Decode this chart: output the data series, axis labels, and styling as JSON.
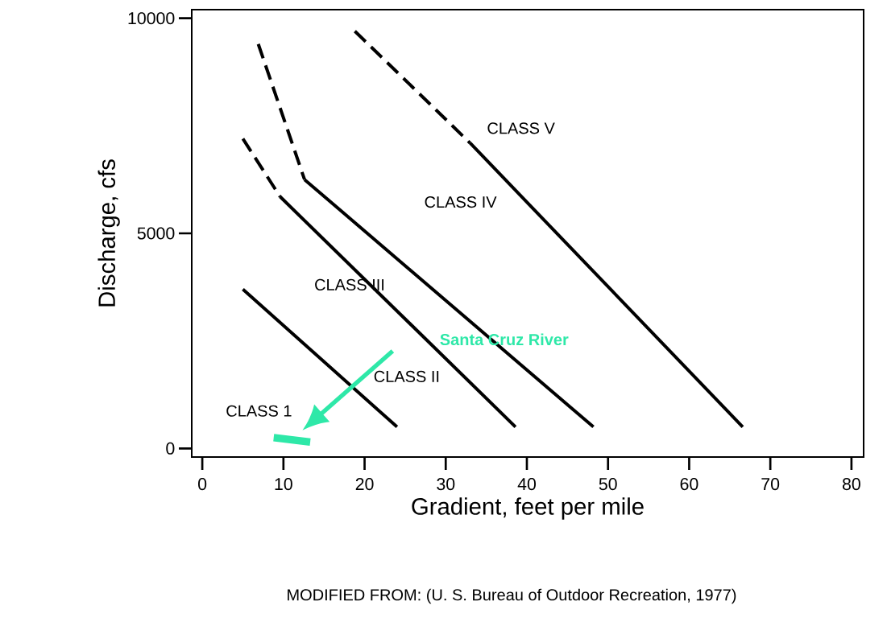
{
  "chart_data": {
    "type": "line",
    "xlabel": "Gradient, feet per mile",
    "ylabel": "Discharge, cfs",
    "xlim": [
      -1.3,
      81.5
    ],
    "ylim": [
      -200,
      10200
    ],
    "xticks": [
      0,
      10,
      20,
      30,
      40,
      50,
      60,
      70,
      80
    ],
    "yticks": [
      0,
      5000,
      10000
    ],
    "grid": false,
    "series": [
      {
        "x": [
          5,
          24
        ],
        "values": [
          3700,
          500
        ],
        "color": "#000000",
        "line_style": "solid"
      },
      {
        "x": [
          5,
          9.6
        ],
        "values": [
          7200,
          5850
        ],
        "color": "#000000",
        "line_style": "dashed"
      },
      {
        "x": [
          9.6,
          38.6
        ],
        "values": [
          5850,
          500
        ],
        "color": "#000000",
        "line_style": "solid"
      },
      {
        "x": [
          6.9,
          12.6
        ],
        "values": [
          9400,
          6250
        ],
        "color": "#000000",
        "line_style": "dashed"
      },
      {
        "x": [
          12.6,
          48.2
        ],
        "values": [
          6250,
          500
        ],
        "color": "#000000",
        "line_style": "solid"
      },
      {
        "x": [
          18.8,
          33
        ],
        "values": [
          9700,
          7100
        ],
        "color": "#000000",
        "line_style": "dashed"
      },
      {
        "x": [
          33,
          66.6
        ],
        "values": [
          7100,
          500
        ],
        "color": "#000000",
        "line_style": "solid"
      },
      {
        "x": [
          8.8,
          13.3
        ],
        "values": [
          250,
          150
        ],
        "color": "#2ee8a8",
        "line_style": "solid"
      }
    ],
    "annotations": [
      "CLASS 1",
      "CLASS II",
      "CLASS III",
      "CLASS IV",
      "CLASS V",
      "Santa Cruz River",
      "MODIFIED FROM: (U. S. Bureau of Outdoor Recreation, 1977)"
    ]
  }
}
